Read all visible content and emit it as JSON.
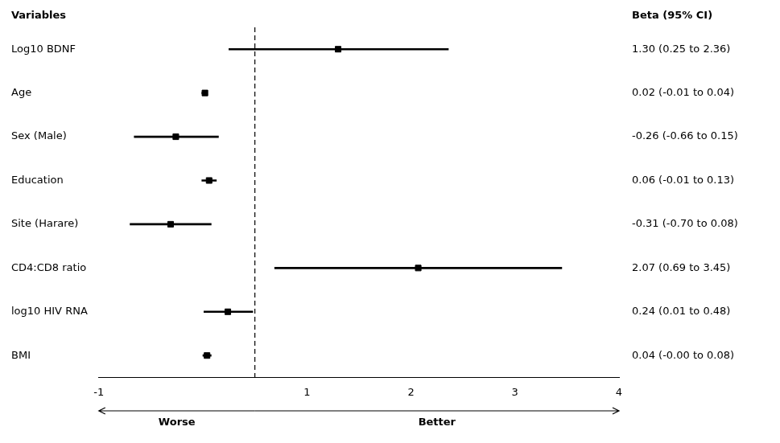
{
  "chart_data": {
    "type": "forest",
    "categories": [
      "Log10 BDNF",
      "Age",
      "Sex (Male)",
      "Education",
      "Site (Harare)",
      "CD4:CD8 ratio",
      "log10 HIV RNA",
      "BMI"
    ],
    "values": [
      1.3,
      0.02,
      -0.26,
      0.06,
      -0.31,
      2.07,
      0.24,
      0.04
    ],
    "ci_low": [
      0.25,
      -0.01,
      -0.66,
      -0.01,
      -0.7,
      0.69,
      0.01,
      -0.0
    ],
    "ci_high": [
      2.36,
      0.04,
      0.15,
      0.13,
      0.08,
      3.45,
      0.48,
      0.08
    ],
    "value_labels": [
      "1.30 (0.25 to 2.36)",
      "0.02 (-0.01 to 0.04)",
      "-0.26 (-0.66 to 0.15)",
      "0.06 (-0.01 to 0.13)",
      "-0.31 (-0.70 to 0.08)",
      "2.07 (0.69 to 3.45)",
      "0.24 (0.01 to 0.48)",
      "0.04 (-0.00 to 0.08)"
    ],
    "headers": [
      "Variables",
      "Beta (95% CI)"
    ],
    "reference_x": 0.5,
    "annotations": [
      "Worse",
      "Better"
    ],
    "xlim": [
      -1,
      4
    ],
    "xticks": [
      -1,
      1,
      2,
      3,
      4
    ],
    "color": "black",
    "grid": false
  }
}
